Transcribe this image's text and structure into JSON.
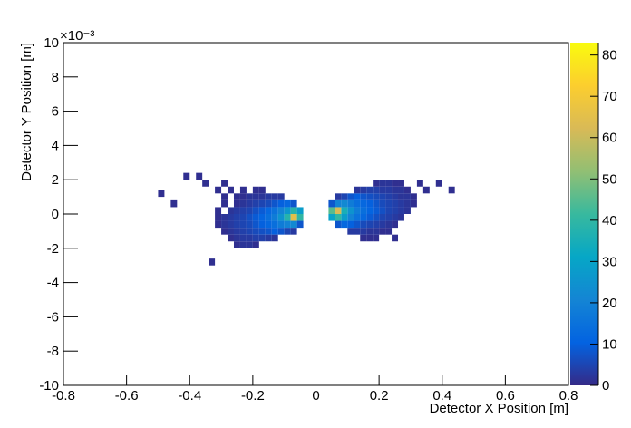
{
  "chart_data": {
    "type": "heatmap",
    "x_label": "Detector X Position [m]",
    "y_label": "Detector Y Position [m]",
    "y_exponent_label": "×10⁻³",
    "xlim": [
      -0.8,
      0.8
    ],
    "xticks": [
      -0.8,
      -0.6,
      -0.4,
      -0.2,
      0,
      0.2,
      0.4,
      0.6,
      0.8
    ],
    "ylim": [
      -10,
      10
    ],
    "yticks": [
      -10,
      -8,
      -6,
      -4,
      -2,
      0,
      2,
      4,
      6,
      8,
      10
    ],
    "zlim": [
      0,
      83
    ],
    "zticks": [
      0,
      10,
      20,
      30,
      40,
      50,
      60,
      70,
      80
    ],
    "colormap": [
      "#352a87",
      "#0363e1",
      "#1485d4",
      "#06a7c6",
      "#38b99e",
      "#92bf73",
      "#d9ba56",
      "#fcce2e",
      "#f9fb0e"
    ],
    "cells": [
      [
        0.19,
        1.8,
        1
      ],
      [
        0.21,
        1.8,
        2
      ],
      [
        0.23,
        1.8,
        2
      ],
      [
        0.25,
        1.8,
        1
      ],
      [
        0.27,
        1.8,
        1
      ],
      [
        0.33,
        1.8,
        1
      ],
      [
        0.39,
        1.8,
        1
      ],
      [
        0.13,
        1.4,
        2
      ],
      [
        0.15,
        1.4,
        3
      ],
      [
        0.17,
        1.4,
        4
      ],
      [
        0.19,
        1.4,
        4
      ],
      [
        0.21,
        1.4,
        3
      ],
      [
        0.23,
        1.4,
        3
      ],
      [
        0.25,
        1.4,
        2
      ],
      [
        0.27,
        1.4,
        2
      ],
      [
        0.29,
        1.4,
        1
      ],
      [
        0.35,
        1.4,
        1
      ],
      [
        0.43,
        1.4,
        1
      ],
      [
        0.07,
        1.0,
        3
      ],
      [
        0.09,
        1.0,
        5
      ],
      [
        0.11,
        1.0,
        8
      ],
      [
        0.13,
        1.0,
        10
      ],
      [
        0.15,
        1.0,
        8
      ],
      [
        0.17,
        1.0,
        7
      ],
      [
        0.19,
        1.0,
        6
      ],
      [
        0.21,
        1.0,
        5
      ],
      [
        0.23,
        1.0,
        4
      ],
      [
        0.25,
        1.0,
        3
      ],
      [
        0.27,
        1.0,
        2
      ],
      [
        0.29,
        1.0,
        2
      ],
      [
        0.31,
        1.0,
        1
      ],
      [
        0.05,
        0.6,
        8
      ],
      [
        0.07,
        0.6,
        20
      ],
      [
        0.09,
        0.6,
        22
      ],
      [
        0.11,
        0.6,
        18
      ],
      [
        0.13,
        0.6,
        14
      ],
      [
        0.15,
        0.6,
        12
      ],
      [
        0.17,
        0.6,
        10
      ],
      [
        0.19,
        0.6,
        8
      ],
      [
        0.21,
        0.6,
        6
      ],
      [
        0.23,
        0.6,
        5
      ],
      [
        0.25,
        0.6,
        4
      ],
      [
        0.27,
        0.6,
        3
      ],
      [
        0.29,
        0.6,
        2
      ],
      [
        0.31,
        0.6,
        1
      ],
      [
        0.05,
        0.2,
        45
      ],
      [
        0.07,
        0.2,
        62
      ],
      [
        0.09,
        0.2,
        35
      ],
      [
        0.11,
        0.2,
        25
      ],
      [
        0.13,
        0.2,
        18
      ],
      [
        0.15,
        0.2,
        14
      ],
      [
        0.17,
        0.2,
        11
      ],
      [
        0.19,
        0.2,
        9
      ],
      [
        0.21,
        0.2,
        7
      ],
      [
        0.23,
        0.2,
        5
      ],
      [
        0.25,
        0.2,
        4
      ],
      [
        0.27,
        0.2,
        3
      ],
      [
        0.29,
        0.2,
        2
      ],
      [
        0.05,
        -0.2,
        30
      ],
      [
        0.07,
        -0.2,
        40
      ],
      [
        0.09,
        -0.2,
        28
      ],
      [
        0.11,
        -0.2,
        20
      ],
      [
        0.13,
        -0.2,
        15
      ],
      [
        0.15,
        -0.2,
        12
      ],
      [
        0.17,
        -0.2,
        9
      ],
      [
        0.19,
        -0.2,
        7
      ],
      [
        0.21,
        -0.2,
        5
      ],
      [
        0.23,
        -0.2,
        4
      ],
      [
        0.25,
        -0.2,
        3
      ],
      [
        0.27,
        -0.2,
        2
      ],
      [
        0.07,
        -0.6,
        8
      ],
      [
        0.09,
        -0.6,
        12
      ],
      [
        0.11,
        -0.6,
        10
      ],
      [
        0.13,
        -0.6,
        8
      ],
      [
        0.15,
        -0.6,
        6
      ],
      [
        0.17,
        -0.6,
        5
      ],
      [
        0.19,
        -0.6,
        4
      ],
      [
        0.21,
        -0.6,
        3
      ],
      [
        0.23,
        -0.6,
        2
      ],
      [
        0.25,
        -0.6,
        1
      ],
      [
        0.11,
        -1.0,
        3
      ],
      [
        0.13,
        -1.0,
        3
      ],
      [
        0.15,
        -1.0,
        3
      ],
      [
        0.17,
        -1.0,
        2
      ],
      [
        0.19,
        -1.0,
        2
      ],
      [
        0.21,
        -1.0,
        1
      ],
      [
        0.23,
        -1.0,
        1
      ],
      [
        0.15,
        -1.4,
        1
      ],
      [
        0.17,
        -1.4,
        1
      ],
      [
        0.19,
        -1.4,
        1
      ],
      [
        0.25,
        -1.4,
        1
      ],
      [
        -0.19,
        -1.8,
        1
      ],
      [
        -0.21,
        -1.8,
        2
      ],
      [
        -0.23,
        -1.8,
        2
      ],
      [
        -0.25,
        -1.8,
        1
      ],
      [
        -0.13,
        -1.4,
        2
      ],
      [
        -0.15,
        -1.4,
        3
      ],
      [
        -0.17,
        -1.4,
        4
      ],
      [
        -0.19,
        -1.4,
        4
      ],
      [
        -0.21,
        -1.4,
        3
      ],
      [
        -0.23,
        -1.4,
        3
      ],
      [
        -0.25,
        -1.4,
        2
      ],
      [
        -0.27,
        -1.4,
        1
      ],
      [
        -0.07,
        -1.0,
        3
      ],
      [
        -0.09,
        -1.0,
        5
      ],
      [
        -0.11,
        -1.0,
        8
      ],
      [
        -0.13,
        -1.0,
        10
      ],
      [
        -0.15,
        -1.0,
        8
      ],
      [
        -0.17,
        -1.0,
        7
      ],
      [
        -0.19,
        -1.0,
        6
      ],
      [
        -0.21,
        -1.0,
        5
      ],
      [
        -0.23,
        -1.0,
        4
      ],
      [
        -0.25,
        -1.0,
        3
      ],
      [
        -0.27,
        -1.0,
        2
      ],
      [
        -0.29,
        -1.0,
        1
      ],
      [
        -0.05,
        -0.6,
        8
      ],
      [
        -0.07,
        -0.6,
        22
      ],
      [
        -0.09,
        -0.6,
        20
      ],
      [
        -0.11,
        -0.6,
        18
      ],
      [
        -0.13,
        -0.6,
        14
      ],
      [
        -0.15,
        -0.6,
        12
      ],
      [
        -0.17,
        -0.6,
        10
      ],
      [
        -0.19,
        -0.6,
        8
      ],
      [
        -0.21,
        -0.6,
        6
      ],
      [
        -0.23,
        -0.6,
        5
      ],
      [
        -0.25,
        -0.6,
        4
      ],
      [
        -0.27,
        -0.6,
        3
      ],
      [
        -0.29,
        -0.6,
        2
      ],
      [
        -0.31,
        -0.6,
        1
      ],
      [
        -0.05,
        -0.2,
        40
      ],
      [
        -0.07,
        -0.2,
        65
      ],
      [
        -0.09,
        -0.2,
        38
      ],
      [
        -0.11,
        -0.2,
        25
      ],
      [
        -0.13,
        -0.2,
        18
      ],
      [
        -0.15,
        -0.2,
        14
      ],
      [
        -0.17,
        -0.2,
        11
      ],
      [
        -0.19,
        -0.2,
        9
      ],
      [
        -0.21,
        -0.2,
        7
      ],
      [
        -0.23,
        -0.2,
        5
      ],
      [
        -0.25,
        -0.2,
        4
      ],
      [
        -0.27,
        -0.2,
        3
      ],
      [
        -0.29,
        -0.2,
        2
      ],
      [
        -0.31,
        -0.2,
        1
      ],
      [
        -0.05,
        0.2,
        28
      ],
      [
        -0.07,
        0.2,
        38
      ],
      [
        -0.09,
        0.2,
        26
      ],
      [
        -0.11,
        0.2,
        20
      ],
      [
        -0.13,
        0.2,
        15
      ],
      [
        -0.15,
        0.2,
        12
      ],
      [
        -0.17,
        0.2,
        9
      ],
      [
        -0.19,
        0.2,
        7
      ],
      [
        -0.21,
        0.2,
        5
      ],
      [
        -0.23,
        0.2,
        4
      ],
      [
        -0.25,
        0.2,
        3
      ],
      [
        -0.27,
        0.2,
        2
      ],
      [
        -0.31,
        0.2,
        1
      ],
      [
        -0.07,
        0.6,
        8
      ],
      [
        -0.09,
        0.6,
        12
      ],
      [
        -0.11,
        0.6,
        10
      ],
      [
        -0.13,
        0.6,
        8
      ],
      [
        -0.15,
        0.6,
        6
      ],
      [
        -0.17,
        0.6,
        5
      ],
      [
        -0.19,
        0.6,
        4
      ],
      [
        -0.21,
        0.6,
        3
      ],
      [
        -0.23,
        0.6,
        2
      ],
      [
        -0.25,
        0.6,
        1
      ],
      [
        -0.29,
        0.6,
        1
      ],
      [
        -0.11,
        1.0,
        3
      ],
      [
        -0.13,
        1.0,
        3
      ],
      [
        -0.15,
        1.0,
        3
      ],
      [
        -0.17,
        1.0,
        2
      ],
      [
        -0.19,
        1.0,
        2
      ],
      [
        -0.21,
        1.0,
        2
      ],
      [
        -0.23,
        1.0,
        1
      ],
      [
        -0.25,
        1.0,
        1
      ],
      [
        -0.29,
        1.0,
        1
      ],
      [
        -0.17,
        1.4,
        1
      ],
      [
        -0.19,
        1.4,
        1
      ],
      [
        -0.23,
        1.4,
        1
      ],
      [
        -0.27,
        1.4,
        1
      ],
      [
        -0.31,
        1.4,
        1
      ],
      [
        -0.29,
        1.8,
        1
      ],
      [
        -0.35,
        1.8,
        1
      ],
      [
        -0.37,
        2.2,
        1
      ],
      [
        -0.41,
        2.2,
        1
      ],
      [
        -0.49,
        1.2,
        1
      ],
      [
        -0.45,
        0.6,
        1
      ],
      [
        -0.33,
        -2.8,
        1
      ]
    ]
  }
}
